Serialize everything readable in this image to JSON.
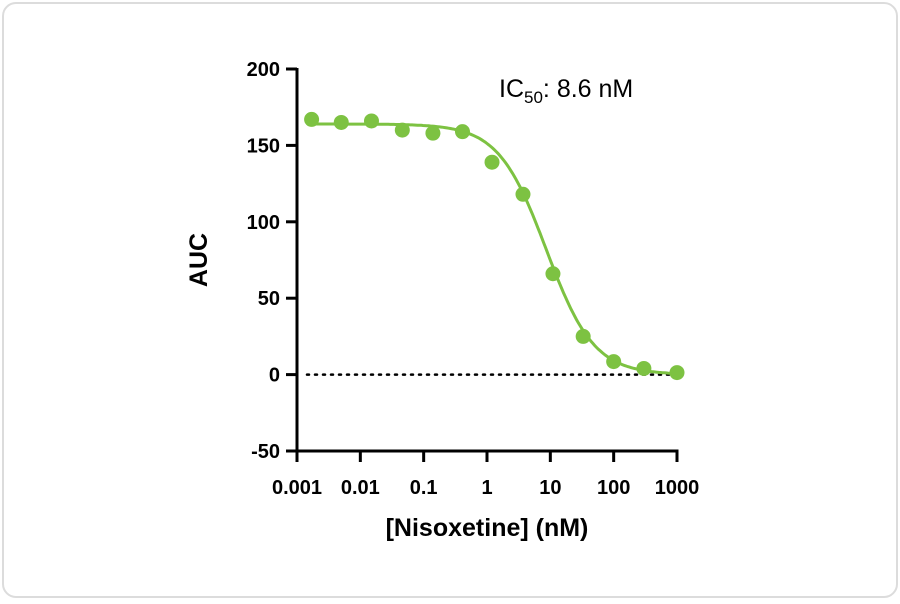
{
  "chart_data": {
    "type": "scatter",
    "xlabel": "[Nisoxetine] (nM)",
    "ylabel": "AUC",
    "x_scale": "log",
    "xlim": [
      0.001,
      1000
    ],
    "ylim": [
      -50,
      200
    ],
    "x_ticks": [
      "0.001",
      "0.01",
      "0.1",
      "1",
      "10",
      "100",
      "1000"
    ],
    "y_ticks": [
      "-50",
      "0",
      "50",
      "100",
      "150",
      "200"
    ],
    "grid": false,
    "baseline": {
      "y": 0,
      "style": "dotted"
    },
    "annotation": {
      "prefix": "IC",
      "subscript": "50",
      "suffix": ": 8.6 nM"
    },
    "series": [
      {
        "color": "#7dc242",
        "x": [
          0.0017,
          0.005,
          0.015,
          0.046,
          0.14,
          0.41,
          1.2,
          3.7,
          11,
          33,
          100,
          300,
          1000
        ],
        "y": [
          167,
          165,
          166,
          160,
          158,
          159,
          139,
          118,
          66,
          25,
          8.5,
          4,
          1.3
        ]
      }
    ],
    "fit": {
      "type": "sigmoidal dose-response",
      "top": 164,
      "bottom": 0,
      "ic50": 8.6,
      "hill_slope": 1.15
    }
  }
}
